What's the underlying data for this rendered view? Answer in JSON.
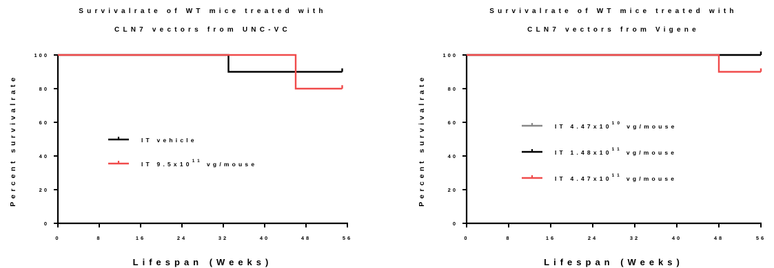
{
  "chart_data": [
    {
      "type": "line",
      "step": true,
      "title": [
        "Survivalrate of WT mice treated with",
        "CLN7 vectors from UNC-VC"
      ],
      "xlabel": "Lifespan (Weeks)",
      "ylabel": "Percent survivalrate",
      "xlim": [
        0,
        56
      ],
      "ylim": [
        0,
        100
      ],
      "xticks": [
        "0",
        "8",
        "16",
        "24",
        "32",
        "40",
        "48",
        "56"
      ],
      "yticks": [
        "0",
        "20",
        "40",
        "60",
        "80",
        "100"
      ],
      "grid": false,
      "legend_position": "center-left",
      "series": [
        {
          "name": "IT vehicle",
          "color": "#000000",
          "points": [
            [
              0,
              100
            ],
            [
              33,
              100
            ],
            [
              33,
              90
            ],
            [
              55,
              90
            ]
          ]
        },
        {
          "name": "IT 9.5x10",
          "name_sup": "11",
          "name_tail": "vg/mouse",
          "color": "#f04b4b",
          "points": [
            [
              0,
              100
            ],
            [
              46,
              100
            ],
            [
              46,
              80
            ],
            [
              55,
              80
            ]
          ]
        }
      ]
    },
    {
      "type": "line",
      "step": true,
      "title": [
        "Survivalrate of WT mice treated with",
        "CLN7 vectors from Vigene"
      ],
      "xlabel": "Lifespan (Weeks)",
      "ylabel": "Percent survivalrate",
      "xlim": [
        0,
        56
      ],
      "ylim": [
        0,
        100
      ],
      "xticks": [
        "0",
        "8",
        "16",
        "24",
        "32",
        "40",
        "48",
        "56"
      ],
      "yticks": [
        "0",
        "20",
        "40",
        "60",
        "80",
        "100"
      ],
      "grid": false,
      "legend_position": "center",
      "series": [
        {
          "name": "IT 4.47x10",
          "name_sup": "10",
          "name_tail": "vg/mouse",
          "color": "#888888",
          "points": [
            [
              0,
              100
            ],
            [
              56,
              100
            ]
          ]
        },
        {
          "name": "IT 1.48x10",
          "name_sup": "11",
          "name_tail": "vg/mouse",
          "color": "#000000",
          "points": [
            [
              0,
              100
            ],
            [
              56,
              100
            ]
          ]
        },
        {
          "name": "IT 4.47x10",
          "name_sup": "11",
          "name_tail": "vg/mouse",
          "color": "#f04b4b",
          "points": [
            [
              0,
              100
            ],
            [
              48,
              100
            ],
            [
              48,
              90
            ],
            [
              56,
              90
            ]
          ]
        }
      ]
    }
  ]
}
